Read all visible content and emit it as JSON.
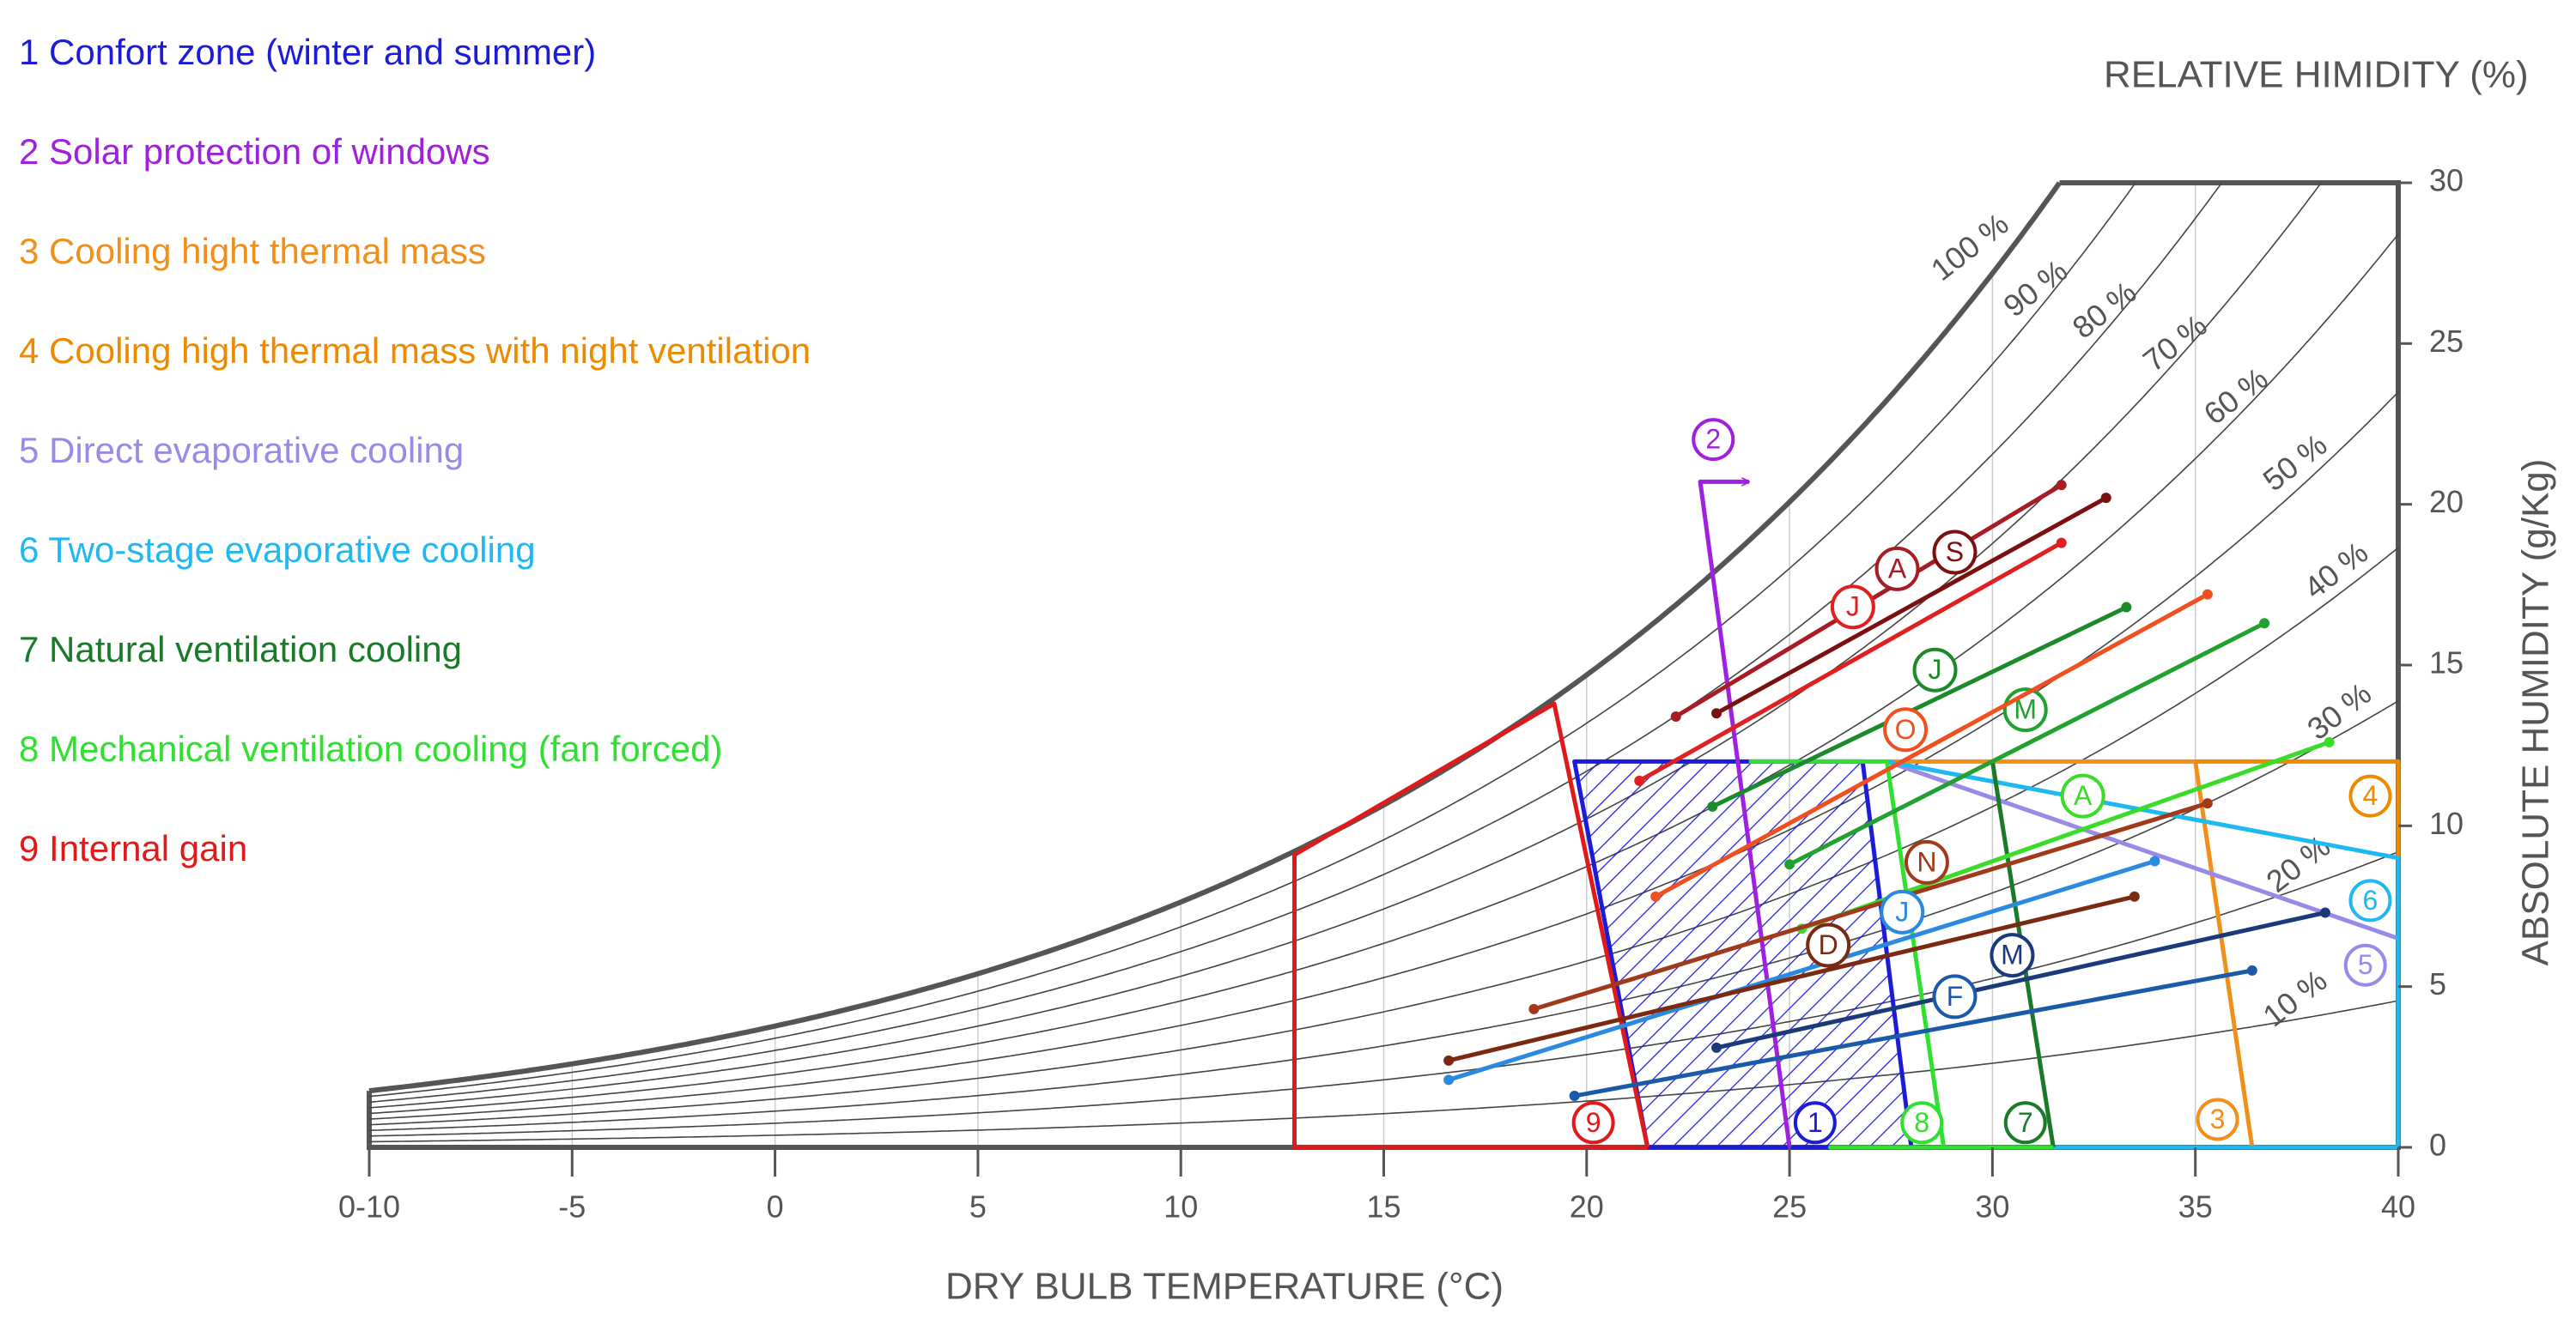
{
  "chart_data": {
    "type": "psychrometric",
    "rh_label": "RELATIVE HIMIDITY (%)",
    "xlabel": "DRY BULB TEMPERATURE (°C)",
    "ylabel": "ABSOLUTE HUMIDITY (g/Kg)",
    "xlim": [
      -10,
      40
    ],
    "ylim": [
      0,
      30
    ],
    "xticks": [
      {
        "value": -10,
        "label": "0-10"
      },
      -5,
      0,
      5,
      10,
      15,
      20,
      25,
      30,
      35,
      40
    ],
    "yticks": [
      0,
      5,
      10,
      15,
      20,
      25,
      30
    ],
    "grid": true,
    "rh": [
      {
        "value": 100,
        "label": "100 %"
      },
      {
        "value": 90,
        "label": "90 %"
      },
      {
        "value": 80,
        "label": "80 %"
      },
      {
        "value": 70,
        "label": "70 %"
      },
      {
        "value": 60,
        "label": "60 %"
      },
      {
        "value": 50,
        "label": "50 %"
      },
      {
        "value": 40,
        "label": "40 %"
      },
      {
        "value": 30,
        "label": "30 %"
      },
      {
        "value": 20,
        "label": "20 %"
      },
      {
        "value": 10,
        "label": "10 %"
      }
    ],
    "zones": [
      {
        "name": "1 Confort zone (winter and summer)",
        "marker": "1",
        "color": "#1c1cd8",
        "hatch": true,
        "closed": true,
        "points": [
          [
            19.7,
            12
          ],
          [
            26.8,
            12
          ],
          [
            28,
            0
          ],
          [
            21.5,
            0
          ]
        ]
      },
      {
        "name": "2 Solar protection of windows",
        "marker": "2",
        "color": "#a020e0",
        "arrow": true,
        "points": [
          [
            25,
            0
          ],
          [
            22.8,
            20.7
          ],
          [
            24,
            20.7
          ]
        ]
      },
      {
        "name": "3 Cooling hight thermal mass",
        "marker": "3",
        "color": "#f0901a",
        "points": [
          [
            27.4,
            12
          ],
          [
            35,
            12
          ],
          [
            36.4,
            0
          ]
        ]
      },
      {
        "name": "4 Cooling high thermal mass with night ventilation",
        "marker": "4",
        "color": "#ee8a00",
        "points": [
          [
            35,
            12
          ],
          [
            40,
            12
          ],
          [
            40,
            8.5
          ]
        ]
      },
      {
        "name": "5 Direct evaporative cooling",
        "marker": "5",
        "color": "#9a8ae8",
        "points": [
          [
            27.4,
            12
          ],
          [
            40,
            6.5
          ]
        ]
      },
      {
        "name": "6 Two-stage evaporative cooling",
        "marker": "6",
        "color": "#20b8f0",
        "points": [
          [
            27.4,
            12
          ],
          [
            40,
            9
          ],
          [
            40,
            0
          ],
          [
            31.5,
            0
          ]
        ]
      },
      {
        "name": "7 Natural ventilation cooling",
        "marker": "7",
        "color": "#1a7a2a",
        "points": [
          [
            30,
            12
          ],
          [
            31.5,
            0
          ]
        ]
      },
      {
        "name": "8 Mechanical ventilation cooling (fan forced)",
        "marker": "8",
        "color": "#30e030",
        "points": [
          [
            24,
            12
          ],
          [
            27.4,
            12
          ],
          [
            28.8,
            0
          ],
          [
            26,
            0
          ],
          [
            31.5,
            0
          ]
        ]
      },
      {
        "name": "9 Internal gain",
        "marker": "9",
        "color": "#e01a1a",
        "points": [
          [
            21.5,
            0
          ],
          [
            12.8,
            0
          ],
          [
            12.8,
            9.1
          ],
          [
            19.2,
            13.8
          ],
          [
            21.5,
            0
          ]
        ]
      }
    ],
    "months": [
      {
        "name": "A",
        "color": "#a81c24",
        "x": [
          22.2,
          31.7
        ],
        "y": [
          13.4,
          20.6
        ]
      },
      {
        "name": "S",
        "color": "#7a1010",
        "x": [
          23.2,
          32.8
        ],
        "y": [
          13.5,
          20.2
        ]
      },
      {
        "name": "J",
        "color": "#e02020",
        "x": [
          21.3,
          31.7
        ],
        "y": [
          11.4,
          18.8
        ]
      },
      {
        "name": "J",
        "color": "#1a8a2a",
        "x": [
          23.1,
          33.3
        ],
        "y": [
          10.6,
          16.8
        ]
      },
      {
        "name": "M",
        "color": "#22a030",
        "x": [
          25.0,
          36.7
        ],
        "y": [
          8.8,
          16.3
        ]
      },
      {
        "name": "O",
        "color": "#f05020",
        "x": [
          21.7,
          35.3
        ],
        "y": [
          7.8,
          17.2
        ]
      },
      {
        "name": "A",
        "color": "#3adc2a",
        "x": [
          25.3,
          38.3
        ],
        "y": [
          6.8,
          12.6
        ]
      },
      {
        "name": "N",
        "color": "#a03a1a",
        "x": [
          18.7,
          35.3
        ],
        "y": [
          4.3,
          10.7
        ]
      },
      {
        "name": "J",
        "color": "#2a8ae0",
        "x": [
          16.6,
          34.0
        ],
        "y": [
          2.1,
          8.9
        ]
      },
      {
        "name": "D",
        "color": "#7a2a10",
        "x": [
          16.6,
          33.5
        ],
        "y": [
          2.7,
          7.8
        ]
      },
      {
        "name": "M",
        "color": "#1a3a7a",
        "x": [
          23.2,
          38.2
        ],
        "y": [
          3.1,
          7.3
        ]
      },
      {
        "name": "F",
        "color": "#1a5aa8",
        "x": [
          19.7,
          36.4
        ],
        "y": [
          1.6,
          5.5
        ]
      }
    ]
  }
}
